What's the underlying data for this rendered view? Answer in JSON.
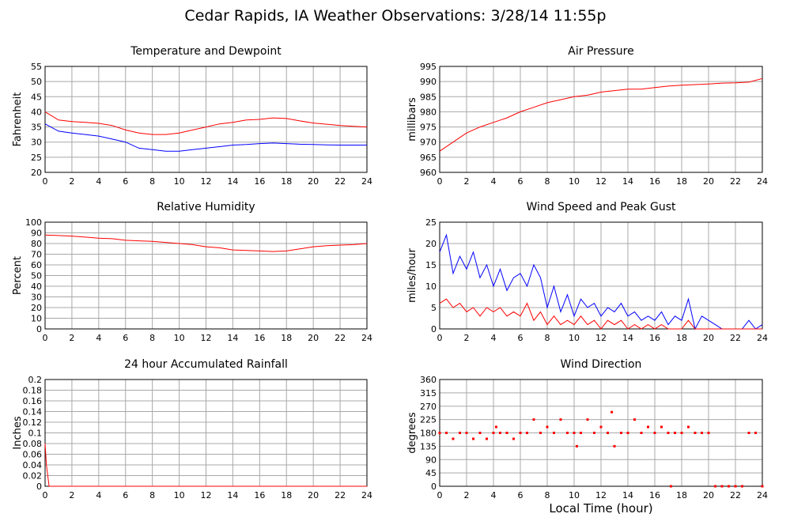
{
  "title": "Cedar Rapids, IA Weather Observations: 3/28/14 11:55p",
  "xlabel": "Local Time (hour)",
  "chart_data": [
    {
      "type": "line",
      "title": "Temperature and Dewpoint",
      "ylabel": "Fahrenheit",
      "xlim": [
        0,
        24
      ],
      "ylim": [
        20,
        55
      ],
      "ystep": 5,
      "grid": true,
      "x": [
        0,
        1,
        2,
        3,
        4,
        5,
        6,
        7,
        8,
        9,
        10,
        11,
        12,
        13,
        14,
        15,
        16,
        17,
        18,
        19,
        20,
        21,
        22,
        23,
        24
      ],
      "series": [
        {
          "color": "#ff0000",
          "values": [
            40,
            37.3,
            36.8,
            36.5,
            36.2,
            35.5,
            34,
            33,
            32.5,
            32.5,
            33,
            34,
            35,
            36,
            36.5,
            37.3,
            37.5,
            38,
            37.8,
            37,
            36.3,
            35.9,
            35.5,
            35.2,
            35
          ]
        },
        {
          "color": "#0000ff",
          "values": [
            36,
            33.6,
            33,
            32.5,
            32,
            31,
            30,
            28,
            27.5,
            27,
            27,
            27.5,
            28,
            28.5,
            29,
            29.2,
            29.5,
            29.7,
            29.5,
            29.3,
            29.2,
            29.1,
            29,
            29,
            29
          ]
        }
      ]
    },
    {
      "type": "line",
      "title": "Air Pressure",
      "ylabel": "millibars",
      "xlim": [
        0,
        24
      ],
      "ylim": [
        960,
        995
      ],
      "ystep": 5,
      "grid": true,
      "x": [
        0,
        1,
        2,
        3,
        4,
        5,
        6,
        7,
        8,
        9,
        10,
        11,
        12,
        13,
        14,
        15,
        16,
        17,
        18,
        19,
        20,
        21,
        22,
        23,
        24
      ],
      "series": [
        {
          "color": "#ff0000",
          "values": [
            967,
            970,
            973,
            975,
            976.5,
            978,
            980,
            981.5,
            983,
            984,
            985,
            985.5,
            986.5,
            987,
            987.5,
            987.5,
            988,
            988.5,
            988.8,
            989,
            989.2,
            989.5,
            989.6,
            989.8,
            991
          ]
        }
      ]
    },
    {
      "type": "line",
      "title": "Relative Humidity",
      "ylabel": "Percent",
      "xlim": [
        0,
        24
      ],
      "ylim": [
        0,
        100
      ],
      "ystep": 10,
      "grid": true,
      "x": [
        0,
        1,
        2,
        3,
        4,
        5,
        6,
        7,
        8,
        9,
        10,
        11,
        12,
        13,
        14,
        15,
        16,
        17,
        18,
        19,
        20,
        21,
        22,
        23,
        24
      ],
      "series": [
        {
          "color": "#ff0000",
          "values": [
            88,
            87.5,
            87,
            86,
            85,
            84.5,
            83,
            82.5,
            82,
            81,
            80,
            79,
            77,
            76,
            74,
            73.5,
            73,
            72.5,
            73,
            75,
            77,
            78,
            78.5,
            79,
            80
          ]
        }
      ]
    },
    {
      "type": "line",
      "title": "Wind Speed and Peak Gust",
      "ylabel": "miles/hour",
      "xlim": [
        0,
        24
      ],
      "ylim": [
        0,
        25
      ],
      "ystep": 5,
      "grid": true,
      "x": [
        0,
        0.5,
        1,
        1.5,
        2,
        2.5,
        3,
        3.5,
        4,
        4.5,
        5,
        5.5,
        6,
        6.5,
        7,
        7.5,
        8,
        8.5,
        9,
        9.5,
        10,
        10.5,
        11,
        11.5,
        12,
        12.5,
        13,
        13.5,
        14,
        14.5,
        15,
        15.5,
        16,
        16.5,
        17,
        17.5,
        18,
        18.5,
        19,
        19.5,
        20,
        20.5,
        21,
        21.5,
        22,
        22.5,
        23,
        23.5,
        24
      ],
      "series": [
        {
          "color": "#0000ff",
          "values": [
            18,
            22,
            13,
            17,
            14,
            18,
            12,
            15,
            10,
            14,
            9,
            12,
            13,
            10,
            15,
            12,
            5,
            10,
            4,
            8,
            3,
            7,
            5,
            6,
            3,
            5,
            4,
            6,
            3,
            4,
            2,
            3,
            2,
            4,
            1,
            3,
            2,
            7,
            0,
            3,
            2,
            1,
            0,
            0,
            0,
            0,
            2,
            0,
            1
          ]
        },
        {
          "color": "#ff0000",
          "values": [
            6,
            7,
            5,
            6,
            4,
            5,
            3,
            5,
            4,
            5,
            3,
            4,
            3,
            6,
            2,
            4,
            1,
            3,
            1,
            2,
            1,
            3,
            1,
            2,
            0,
            2,
            1,
            2,
            0,
            1,
            0,
            1,
            0,
            1,
            0,
            0,
            0,
            2,
            0,
            0,
            0,
            0,
            0,
            0,
            0,
            0,
            0,
            0,
            0
          ]
        }
      ]
    },
    {
      "type": "line",
      "title": "24 hour Accumulated Rainfall",
      "ylabel": "Inches",
      "xlim": [
        0,
        24
      ],
      "ylim": [
        0,
        0.2
      ],
      "ystep": 0.02,
      "grid": true,
      "x": [
        0,
        0.1,
        0.3,
        24
      ],
      "series": [
        {
          "color": "#ff0000",
          "values": [
            0.08,
            0.04,
            0,
            0
          ]
        }
      ]
    },
    {
      "type": "scatter",
      "title": "Wind Direction",
      "ylabel": "degrees",
      "xlim": [
        0,
        24
      ],
      "ylim": [
        0,
        360
      ],
      "ystep": 45,
      "grid": true,
      "x": [
        0,
        0.5,
        1,
        1.5,
        2,
        2.5,
        3,
        3.5,
        4,
        4.2,
        4.5,
        5,
        5.5,
        6,
        6.5,
        7,
        7.5,
        8,
        8.5,
        9,
        9.5,
        10,
        10.2,
        10.5,
        11,
        11.5,
        12,
        12.5,
        12.8,
        13,
        13.5,
        14,
        14.5,
        15,
        15.5,
        16,
        16.5,
        17,
        17.2,
        17.5,
        18,
        18.5,
        19,
        19.5,
        20,
        20.5,
        21,
        21.5,
        22,
        22.5,
        23,
        23.5,
        24
      ],
      "series": [
        {
          "color": "#ff0000",
          "values": [
            180,
            180,
            160,
            180,
            180,
            160,
            180,
            160,
            180,
            200,
            180,
            180,
            160,
            180,
            180,
            225,
            180,
            200,
            180,
            225,
            180,
            180,
            135,
            180,
            225,
            180,
            200,
            180,
            250,
            135,
            180,
            180,
            225,
            180,
            200,
            180,
            200,
            180,
            0,
            180,
            180,
            200,
            180,
            180,
            180,
            0,
            0,
            0,
            0,
            0,
            180,
            180,
            0
          ]
        }
      ]
    }
  ]
}
